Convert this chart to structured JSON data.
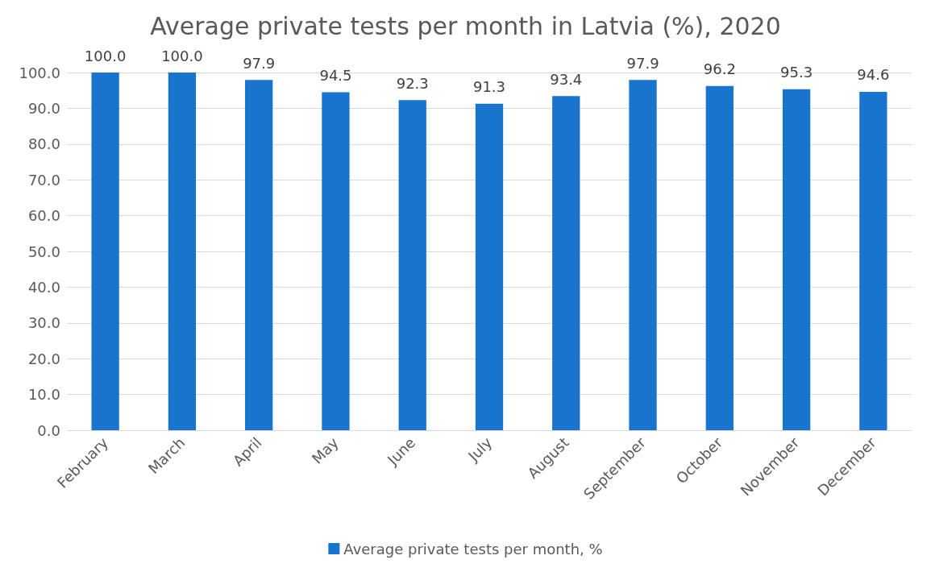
{
  "chart_data": {
    "type": "bar",
    "title": "Average private tests per month in Latvia (%), 2020",
    "categories": [
      "February",
      "March",
      "April",
      "May",
      "June",
      "July",
      "August",
      "September",
      "October",
      "November",
      "December"
    ],
    "series": [
      {
        "name": "Average private tests per month, %",
        "color": "#1874cd",
        "values": [
          100.0,
          100.0,
          97.9,
          94.5,
          92.3,
          91.3,
          93.4,
          97.9,
          96.2,
          95.3,
          94.6
        ],
        "value_labels": [
          "100.0",
          "100.0",
          "97.9",
          "94.5",
          "92.3",
          "91.3",
          "93.4",
          "97.9",
          "96.2",
          "95.3",
          "94.6"
        ]
      }
    ],
    "ylim": [
      0,
      100
    ],
    "yticks": [
      {
        "value": 0,
        "label": "0.0"
      },
      {
        "value": 10,
        "label": "10.0"
      },
      {
        "value": 20,
        "label": "20.0"
      },
      {
        "value": 30,
        "label": "30.0"
      },
      {
        "value": 40,
        "label": "40.0"
      },
      {
        "value": 50,
        "label": "50.0"
      },
      {
        "value": 60,
        "label": "60.0"
      },
      {
        "value": 70,
        "label": "70.0"
      },
      {
        "value": 80,
        "label": "80.0"
      },
      {
        "value": 90,
        "label": "90.0"
      },
      {
        "value": 100,
        "label": "100.0"
      }
    ],
    "grid": "y",
    "legend": "bottom"
  }
}
